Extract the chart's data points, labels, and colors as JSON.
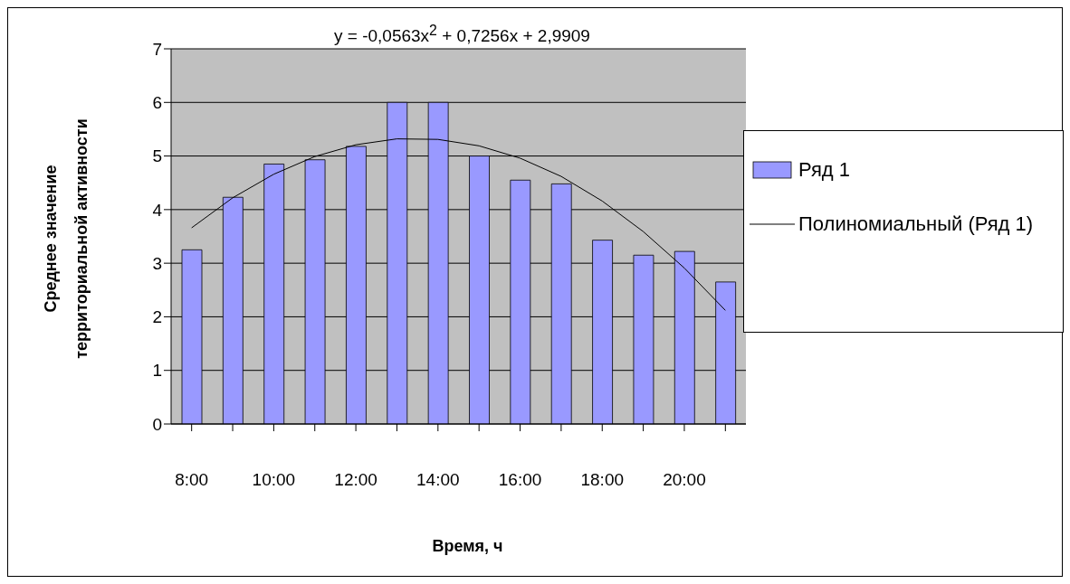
{
  "chart_data": {
    "type": "bar",
    "xlabel": "Время, ч",
    "ylabel": "Среднее значение территориальной активности",
    "categories": [
      "8:00",
      null,
      "10:00",
      null,
      "12:00",
      null,
      "14:00",
      null,
      "16:00",
      null,
      "18:00",
      null,
      "20:00",
      null
    ],
    "series": [
      {
        "name": "Ряд 1",
        "color": "#9999ff",
        "values": [
          3.25,
          4.23,
          4.85,
          4.93,
          5.18,
          6.0,
          6.0,
          5.0,
          4.55,
          4.48,
          3.43,
          3.15,
          3.22,
          2.65
        ]
      },
      {
        "name": "Полиномиальный (Ряд 1)",
        "type": "line",
        "color": "#000000",
        "values": [
          3.66,
          4.22,
          4.66,
          4.99,
          5.21,
          5.32,
          5.31,
          5.19,
          4.96,
          4.62,
          4.16,
          3.59,
          2.91,
          2.12
        ]
      }
    ],
    "ylim": [
      0,
      7
    ],
    "yticks": [
      0,
      1,
      2,
      3,
      4,
      5,
      6,
      7
    ],
    "grid": "y",
    "legend": "right",
    "marker": "none",
    "line_style": "solid",
    "annotations": [
      "y = -0,0563x$^{2}$ + 0,7256x + 2,9909"
    ]
  }
}
